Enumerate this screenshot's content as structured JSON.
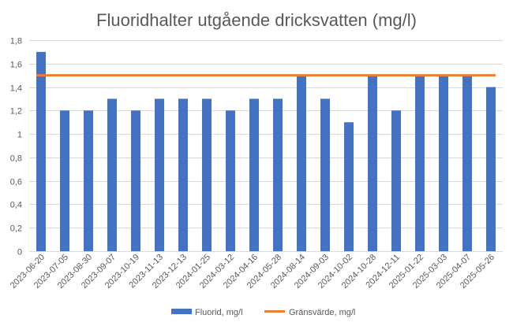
{
  "chart_data": {
    "type": "bar",
    "title": "Fluoridhalter utgående dricksvatten (mg/l)",
    "xlabel": "",
    "ylabel": "",
    "ylim": [
      0,
      1.8
    ],
    "yticks": [
      "0",
      "0,2",
      "0,4",
      "0,6",
      "0,8",
      "1",
      "1,2",
      "1,4",
      "1,6",
      "1,8"
    ],
    "grid": true,
    "legend_position": "bottom",
    "categories": [
      "2023-06-20",
      "2023-07-05",
      "2023-08-30",
      "2023-09-07",
      "2023-10-19",
      "2023-11-13",
      "2023-12-13",
      "2024-01-25",
      "2024-03-12",
      "2024-04-16",
      "2024-05-28",
      "2024-08-14",
      "2024-09-03",
      "2024-10-02",
      "2024-10-28",
      "2024-12-11",
      "2025-01-22",
      "2025-03-03",
      "2025-04-07",
      "2025-05-26"
    ],
    "series": [
      {
        "name": "Fluorid, mg/l",
        "type": "bar",
        "color": "#4472C4",
        "values": [
          1.7,
          1.2,
          1.2,
          1.3,
          1.2,
          1.3,
          1.3,
          1.3,
          1.2,
          1.3,
          1.3,
          1.5,
          1.3,
          1.1,
          1.5,
          1.2,
          1.5,
          1.5,
          1.5,
          1.4
        ]
      },
      {
        "name": "Gränsvärde, mg/l",
        "type": "line",
        "color": "#ED7D31",
        "values": [
          1.5,
          1.5,
          1.5,
          1.5,
          1.5,
          1.5,
          1.5,
          1.5,
          1.5,
          1.5,
          1.5,
          1.5,
          1.5,
          1.5,
          1.5,
          1.5,
          1.5,
          1.5,
          1.5,
          1.5
        ]
      }
    ]
  }
}
